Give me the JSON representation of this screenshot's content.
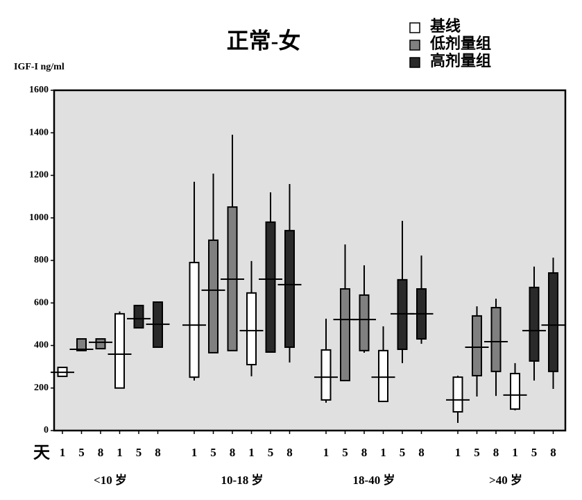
{
  "chart_data": {
    "type": "box",
    "title": "正常-女",
    "ylabel": "IGF-I ng/ml",
    "xprefix": "天",
    "ylim": [
      0,
      1600
    ],
    "yticks": [
      0,
      200,
      400,
      600,
      800,
      1000,
      1200,
      1400,
      1600
    ],
    "series": [
      {
        "name": "基线",
        "color": "#ffffff"
      },
      {
        "name": "低剂量组",
        "color": "#808080"
      },
      {
        "name": "高剂量组",
        "color": "#2a2a2a"
      }
    ],
    "groups": [
      {
        "name": "<10 岁",
        "boxes": [
          {
            "label": "1",
            "series": 0,
            "min": 255,
            "q1": 255,
            "median": 274,
            "q3": 297,
            "max": 297
          },
          {
            "label": "5",
            "series": 1,
            "min": 376,
            "q1": 376,
            "median": 382,
            "q3": 431,
            "max": 431
          },
          {
            "label": "8",
            "series": 1,
            "min": 385,
            "q1": 385,
            "median": 415,
            "q3": 431,
            "max": 431
          },
          {
            "label": "1",
            "series": 0,
            "min": 200,
            "q1": 200,
            "median": 359,
            "q3": 549,
            "max": 560
          },
          {
            "label": "5",
            "series": 2,
            "min": 483,
            "q1": 483,
            "median": 526,
            "q3": 588,
            "max": 588
          },
          {
            "label": "8",
            "series": 2,
            "min": 392,
            "q1": 392,
            "median": 500,
            "q3": 604,
            "max": 604
          }
        ]
      },
      {
        "name": "10-18 岁",
        "boxes": [
          {
            "label": "1",
            "series": 0,
            "min": 235,
            "q1": 251,
            "median": 496,
            "q3": 790,
            "max": 1170
          },
          {
            "label": "5",
            "series": 1,
            "min": 366,
            "q1": 366,
            "median": 660,
            "q3": 895,
            "max": 1208
          },
          {
            "label": "8",
            "series": 1,
            "min": 376,
            "q1": 376,
            "median": 712,
            "q3": 1051,
            "max": 1391
          },
          {
            "label": "1",
            "series": 0,
            "min": 255,
            "q1": 310,
            "median": 470,
            "q3": 647,
            "max": 797
          },
          {
            "label": "5",
            "series": 2,
            "min": 369,
            "q1": 369,
            "median": 712,
            "q3": 980,
            "max": 1120
          },
          {
            "label": "8",
            "series": 2,
            "min": 320,
            "q1": 392,
            "median": 686,
            "q3": 940,
            "max": 1159
          }
        ]
      },
      {
        "name": "18-40 岁",
        "boxes": [
          {
            "label": "1",
            "series": 0,
            "min": 131,
            "q1": 144,
            "median": 251,
            "q3": 379,
            "max": 526
          },
          {
            "label": "5",
            "series": 1,
            "min": 235,
            "q1": 235,
            "median": 522,
            "q3": 666,
            "max": 875
          },
          {
            "label": "8",
            "series": 1,
            "min": 366,
            "q1": 376,
            "median": 522,
            "q3": 637,
            "max": 777
          },
          {
            "label": "1",
            "series": 0,
            "min": 137,
            "q1": 137,
            "median": 251,
            "q3": 376,
            "max": 490
          },
          {
            "label": "5",
            "series": 2,
            "min": 317,
            "q1": 382,
            "median": 549,
            "q3": 709,
            "max": 986
          },
          {
            "label": "8",
            "series": 2,
            "min": 408,
            "q1": 431,
            "median": 549,
            "q3": 666,
            "max": 823
          }
        ]
      },
      {
        "name": ">40 岁",
        "boxes": [
          {
            "label": "1",
            "series": 0,
            "min": 36,
            "q1": 88,
            "median": 144,
            "q3": 251,
            "max": 258
          },
          {
            "label": "5",
            "series": 1,
            "min": 160,
            "q1": 258,
            "median": 392,
            "q3": 539,
            "max": 584
          },
          {
            "label": "8",
            "series": 1,
            "min": 163,
            "q1": 278,
            "median": 418,
            "q3": 578,
            "max": 620
          },
          {
            "label": "1",
            "series": 0,
            "min": 95,
            "q1": 101,
            "median": 167,
            "q3": 268,
            "max": 317
          },
          {
            "label": "5",
            "series": 2,
            "min": 235,
            "q1": 327,
            "median": 470,
            "q3": 673,
            "max": 771
          },
          {
            "label": "8",
            "series": 2,
            "min": 196,
            "q1": 278,
            "median": 496,
            "q3": 741,
            "max": 813
          }
        ]
      }
    ]
  }
}
